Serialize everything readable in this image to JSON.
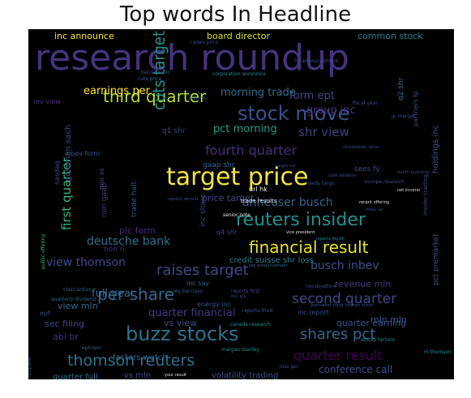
{
  "chart_data": {
    "type": "wordcloud",
    "title": "Top words In Headline",
    "words": [
      {
        "text": "research roundup",
        "weight": 44,
        "color": "#46327e"
      },
      {
        "text": "target price",
        "weight": 30,
        "color": "#f0e442"
      },
      {
        "text": "stock move",
        "weight": 24,
        "color": "#3b528b"
      },
      {
        "text": "buzz stocks",
        "weight": 24,
        "color": "#2c728e"
      },
      {
        "text": "reuters insider",
        "weight": 22,
        "color": "#21918c"
      },
      {
        "text": "financial result",
        "weight": 20,
        "color": "#e7e419"
      },
      {
        "text": "third quarter",
        "weight": 20,
        "color": "#b5de2b"
      },
      {
        "text": "per share",
        "weight": 20,
        "color": "#31688e"
      },
      {
        "text": "cuts target",
        "weight": 20,
        "color": "#21918c"
      },
      {
        "text": "thomson reuters",
        "weight": 19,
        "color": "#2c728e"
      },
      {
        "text": "raises target",
        "weight": 18,
        "color": "#3e4a89"
      },
      {
        "text": "shares pct",
        "weight": 18,
        "color": "#31688e"
      },
      {
        "text": "second quarter",
        "weight": 17,
        "color": "#3e4a89"
      },
      {
        "text": "fourth quarter",
        "weight": 16,
        "color": "#472d7b"
      },
      {
        "text": "quarter result",
        "weight": 16,
        "color": "#440154"
      },
      {
        "text": "shr view",
        "weight": 15,
        "color": "#433e85"
      },
      {
        "text": "first quarter",
        "weight": 15,
        "color": "#35b779"
      },
      {
        "text": "deutsche bank",
        "weight": 14,
        "color": "#2c728e"
      },
      {
        "text": "anheuser busch",
        "weight": 14,
        "color": "#31688e"
      },
      {
        "text": "busch inbev",
        "weight": 14,
        "color": "#3b528b"
      },
      {
        "text": "view thomson",
        "weight": 14,
        "color": "#3e4a89"
      },
      {
        "text": "quarter financial",
        "weight": 13,
        "color": "#443983"
      },
      {
        "text": "earnings per",
        "weight": 13,
        "color": "#fde725"
      },
      {
        "text": "morning trade",
        "weight": 13,
        "color": "#2c728e"
      },
      {
        "text": "pct morning",
        "weight": 13,
        "color": "#1f9e89"
      },
      {
        "text": "full year",
        "weight": 13,
        "color": "#31688e"
      },
      {
        "text": "form ept",
        "weight": 13,
        "color": "#3e4a89"
      },
      {
        "text": "group inc",
        "weight": 13,
        "color": "#472d7b"
      },
      {
        "text": "conference call",
        "weight": 12,
        "color": "#3b528b"
      },
      {
        "text": "inc announce",
        "weight": 11,
        "color": "#fde725"
      },
      {
        "text": "board director",
        "weight": 11,
        "color": "#d8e219"
      },
      {
        "text": "common stock",
        "weight": 11,
        "color": "#26828e"
      },
      {
        "text": "price target",
        "weight": 11,
        "color": "#3e4a89"
      },
      {
        "text": "plc form",
        "weight": 11,
        "color": "#472d7b"
      },
      {
        "text": "sec filing",
        "weight": 11,
        "color": "#3e4a89"
      },
      {
        "text": "view mln",
        "weight": 11,
        "color": "#31688e"
      },
      {
        "text": "abi br",
        "weight": 11,
        "color": "#46327e"
      },
      {
        "text": "vs view",
        "weight": 11,
        "color": "#3e4a89"
      },
      {
        "text": "revenue mln",
        "weight": 11,
        "color": "#443983"
      },
      {
        "text": "quarter earning",
        "weight": 11,
        "color": "#3b528b"
      },
      {
        "text": "mln mln",
        "weight": 11,
        "color": "#3b528b"
      },
      {
        "text": "credit suisse shr loss",
        "weight": 10,
        "color": "#26828e"
      },
      {
        "text": "quarter full",
        "weight": 10,
        "color": "#2c728e"
      },
      {
        "text": "vs mln",
        "weight": 10,
        "color": "#3e4a89"
      },
      {
        "text": "volatility trading",
        "weight": 10,
        "color": "#3b528b"
      },
      {
        "text": "factors watch",
        "weight": 10,
        "color": "#31688e"
      },
      {
        "text": "goldman sach",
        "weight": 10,
        "color": "#3e4a89"
      },
      {
        "text": "holdings inc",
        "weight": 10,
        "color": "#3b528b"
      },
      {
        "text": "non gaap",
        "weight": 9,
        "color": "#433e85"
      },
      {
        "text": "non ri",
        "weight": 9,
        "color": "#46327e"
      },
      {
        "text": "inc share",
        "weight": 9,
        "color": "#3e4a89"
      },
      {
        "text": "trade halt",
        "weight": 9,
        "color": "#3b528b"
      },
      {
        "text": "pct premarket",
        "weight": 9,
        "color": "#3b528b"
      },
      {
        "text": "q2 shr",
        "weight": 9,
        "color": "#2c728e"
      },
      {
        "text": "q1 shr",
        "weight": 9,
        "color": "#3e4a89"
      },
      {
        "text": "gaap shr",
        "weight": 9,
        "color": "#31688e"
      },
      {
        "text": "q4 shr",
        "weight": 8,
        "color": "#3e4a89"
      },
      {
        "text": "sees fy",
        "weight": 9,
        "color": "#3e4a89"
      },
      {
        "text": "energy inc",
        "weight": 8,
        "color": "#3b528b"
      },
      {
        "text": "inc say",
        "weight": 8,
        "color": "#31688e"
      },
      {
        "text": "partners lp",
        "weight": 8,
        "color": "#3e4a89"
      },
      {
        "text": "inbev form",
        "weight": 8,
        "color": "#3b528b"
      },
      {
        "text": "rev view",
        "weight": 8,
        "color": "#46327e"
      },
      {
        "text": "url hk",
        "weight": 8,
        "color": "#f0f0f0"
      },
      {
        "text": "trade results",
        "weight": 7,
        "color": "#e0e0e0"
      },
      {
        "text": "nasdaq",
        "weight": 8,
        "color": "#3b528b"
      },
      {
        "text": "mln vs",
        "weight": 8,
        "color": "#3e4a89"
      },
      {
        "text": "ept",
        "weight": 8,
        "color": "#3e4a89"
      },
      {
        "text": "inc report",
        "weight": 8,
        "color": "#3e4a89"
      },
      {
        "text": "reports third",
        "weight": 6,
        "color": "#3b528b"
      },
      {
        "text": "margan stanley",
        "weight": 6,
        "color": "#21918c"
      },
      {
        "text": "canada research",
        "weight": 6,
        "color": "#21918c"
      },
      {
        "text": "ept non",
        "weight": 6,
        "color": "#2c728e"
      },
      {
        "text": "class action",
        "weight": 6,
        "color": "#31688e"
      },
      {
        "text": "quarterly dividend",
        "weight": 6,
        "color": "#31688e"
      },
      {
        "text": "reg barclays",
        "weight": 6,
        "color": "#3b528b"
      },
      {
        "text": "inc q1",
        "weight": 6,
        "color": "#3e4a89"
      },
      {
        "text": "reports first",
        "weight": 6,
        "color": "#3e4a89"
      },
      {
        "text": "stocks factors",
        "weight": 6,
        "color": "#21918c"
      },
      {
        "text": "m thomson",
        "weight": 6,
        "color": "#21918c"
      },
      {
        "text": "loss per",
        "weight": 6,
        "color": "#3e4a89"
      },
      {
        "text": "senior note",
        "weight": 6,
        "color": "#e8e8e8"
      },
      {
        "text": "public offering",
        "weight": 6,
        "color": "#35b779"
      },
      {
        "text": "fiscal year",
        "weight": 6,
        "color": "#3e4a89"
      },
      {
        "text": "jp margar",
        "weight": 6,
        "color": "#3e4a89"
      },
      {
        "text": "barclays plc",
        "weight": 6,
        "color": "#3b528b"
      },
      {
        "text": "hk announcement",
        "weight": 6,
        "color": "#3b528b"
      },
      {
        "text": "corporation announce",
        "weight": 6,
        "color": "#21918c"
      },
      {
        "text": "cuts price",
        "weight": 6,
        "color": "#31688e"
      },
      {
        "text": "raises price",
        "weight": 6,
        "color": "#3e4a89"
      },
      {
        "text": "europe research",
        "weight": 6,
        "color": "#3e4a89"
      },
      {
        "text": "insider trading",
        "weight": 7,
        "color": "#3e4a89"
      },
      {
        "text": "reg deadline",
        "weight": 6,
        "color": "#3e4a89"
      },
      {
        "text": "wells fargo",
        "weight": 6,
        "color": "#3e4a89"
      },
      {
        "text": "premarket trade conmor share",
        "weight": 5,
        "color": "#3b528b"
      },
      {
        "text": "vice president",
        "weight": 5,
        "color": "#e0e0e0"
      },
      {
        "text": "reports second",
        "weight": 5,
        "color": "#3e4a89"
      },
      {
        "text": "cash dividend",
        "weight": 5,
        "color": "#3e4a89"
      },
      {
        "text": "shareholder letter",
        "weight": 5,
        "color": "#3e4a89"
      },
      {
        "text": "net incomo",
        "weight": 5,
        "color": "#e0e0e0"
      },
      {
        "text": "recent offering",
        "weight": 5,
        "color": "#e0e0e0"
      },
      {
        "text": "reports fourth",
        "weight": 5,
        "color": "#21918c"
      },
      {
        "text": "reg announcement",
        "weight": 5,
        "color": "#31688e"
      },
      {
        "text": "your result",
        "weight": 5,
        "color": "#e0e0e0"
      },
      {
        "text": "inbev sa",
        "weight": 5,
        "color": "#3e4a89"
      },
      {
        "text": "fourth quarterly",
        "weight": 5,
        "color": "#3e4a89"
      },
      {
        "text": "target cut",
        "weight": 5,
        "color": "#3e4a89"
      },
      {
        "text": "dckgn de",
        "weight": 5,
        "color": "#3e4a89"
      },
      {
        "text": "cyyg desc",
        "weight": 5,
        "color": "#3e4a89"
      }
    ]
  }
}
